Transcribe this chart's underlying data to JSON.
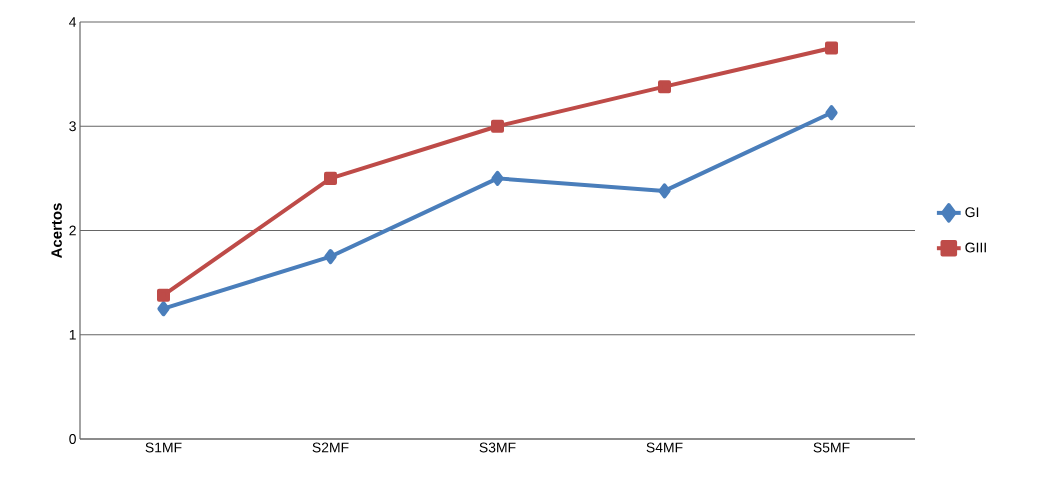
{
  "chart_data": {
    "type": "line",
    "ylabel": "Acertos",
    "categories": [
      "S1MF",
      "S2MF",
      "S3MF",
      "S4MF",
      "S5MF"
    ],
    "series": [
      {
        "name": "GI",
        "color": "#4a7ebb",
        "marker": "diamond",
        "values": [
          1.25,
          1.75,
          2.5,
          2.38,
          3.13
        ]
      },
      {
        "name": "GIII",
        "color": "#be4b48",
        "marker": "square",
        "values": [
          1.38,
          2.5,
          3.0,
          3.38,
          3.75
        ]
      }
    ],
    "ylim": [
      0,
      4
    ],
    "yticks": [
      0,
      1,
      2,
      3,
      4
    ],
    "grid": "y",
    "legend": "right"
  }
}
